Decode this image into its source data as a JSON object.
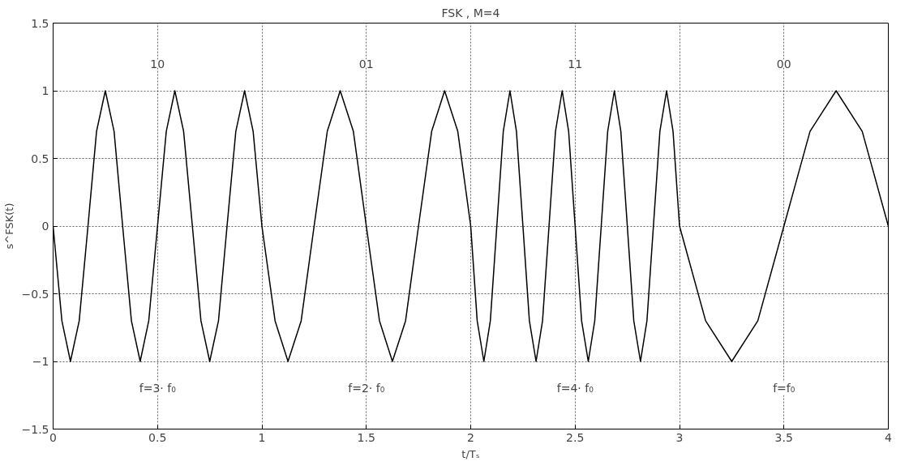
{
  "chart_data": {
    "type": "line",
    "title": "FSK , M=4",
    "xlabel": "t/Tₛ",
    "ylabel": "s^FSK(t)",
    "xlim": [
      0,
      4
    ],
    "ylim": [
      -1.5,
      1.5
    ],
    "xticks": [
      0,
      0.5,
      1,
      1.5,
      2,
      2.5,
      3,
      3.5,
      4
    ],
    "yticks": [
      -1.5,
      -1,
      -0.5,
      0,
      0.5,
      1,
      1.5
    ],
    "grid": true,
    "marker": "none",
    "line_style": "solid",
    "series": [
      {
        "color": "#000000",
        "x": [
          0,
          0.042,
          0.083,
          0.125,
          0.167,
          0.208,
          0.25,
          0.292,
          0.333,
          0.375,
          0.417,
          0.458,
          0.5,
          0.542,
          0.583,
          0.625,
          0.667,
          0.708,
          0.75,
          0.792,
          0.833,
          0.875,
          0.917,
          0.958,
          1,
          1.063,
          1.125,
          1.188,
          1.25,
          1.313,
          1.375,
          1.438,
          1.5,
          1.563,
          1.625,
          1.688,
          1.75,
          1.813,
          1.875,
          1.938,
          2,
          2.031,
          2.063,
          2.094,
          2.125,
          2.156,
          2.188,
          2.219,
          2.25,
          2.281,
          2.313,
          2.344,
          2.375,
          2.406,
          2.438,
          2.469,
          2.5,
          2.531,
          2.563,
          2.594,
          2.625,
          2.656,
          2.688,
          2.719,
          2.75,
          2.781,
          2.813,
          2.844,
          2.875,
          2.906,
          2.938,
          2.969,
          3,
          3.125,
          3.25,
          3.375,
          3.5,
          3.625,
          3.75,
          3.875,
          4
        ],
        "values": [
          0,
          -0.7,
          -1,
          -0.7,
          0,
          0.7,
          1,
          0.7,
          0,
          -0.7,
          -1,
          -0.7,
          0,
          0.7,
          1,
          0.7,
          0,
          -0.7,
          -1,
          -0.7,
          0,
          0.7,
          1,
          0.7,
          0,
          -0.7,
          -1,
          -0.7,
          0,
          0.7,
          1,
          0.7,
          0,
          -0.7,
          -1,
          -0.7,
          0,
          0.7,
          1,
          0.7,
          0,
          -0.7,
          -1,
          -0.7,
          0,
          0.7,
          1,
          0.7,
          0,
          -0.7,
          -1,
          -0.7,
          0,
          0.7,
          1,
          0.7,
          0,
          -0.7,
          -1,
          -0.7,
          0,
          0.7,
          1,
          0.7,
          0,
          -0.7,
          -1,
          -0.7,
          0,
          0.7,
          1,
          0.7,
          0,
          -0.7,
          -1,
          -0.7,
          0,
          0.7,
          1,
          0.7,
          0
        ]
      }
    ],
    "annotations": [
      "10",
      "01",
      "11",
      "00",
      "f=3· f₀",
      "f=2· f₀",
      "f=4· f₀",
      "f=f₀"
    ]
  }
}
